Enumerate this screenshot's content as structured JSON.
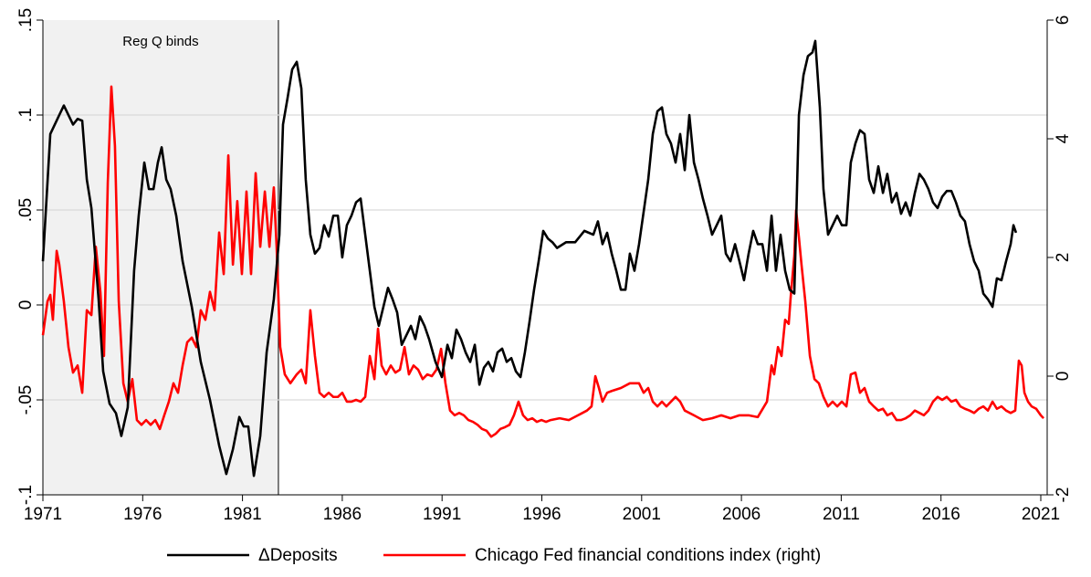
{
  "chart_data": {
    "type": "line",
    "annotation": "Reg Q binds",
    "shaded_region": {
      "x": [
        1971,
        1982.8
      ]
    },
    "xlim": [
      1971,
      2021.32
    ],
    "xticks": [
      1971,
      1976,
      1981,
      1986,
      1991,
      1996,
      2001,
      2006,
      2011,
      2016,
      2021
    ],
    "ylim": [
      -0.1,
      0.15
    ],
    "yticks": [
      {
        "value": -0.1,
        "label": "-.1"
      },
      {
        "value": -0.05,
        "label": "-.05"
      },
      {
        "value": 0,
        "label": "0"
      },
      {
        "value": 0.05,
        "label": ".05"
      },
      {
        "value": 0.1,
        "label": ".1"
      },
      {
        "value": 0.15,
        "label": ".15"
      }
    ],
    "y2lim": [
      -2,
      6
    ],
    "y2ticks": [
      -2,
      0,
      2,
      4,
      6
    ],
    "grid": true,
    "legend": "bottom",
    "series": [
      {
        "name": "ΔDeposits",
        "color": "#000000",
        "x": [
          1971.0,
          1971.37,
          1971.82,
          1972.05,
          1972.51,
          1972.74,
          1972.97,
          1973.2,
          1973.43,
          1973.79,
          1974.02,
          1974.34,
          1974.66,
          1974.93,
          1975.25,
          1975.57,
          1975.8,
          1976.08,
          1976.31,
          1976.54,
          1976.76,
          1976.95,
          1977.18,
          1977.4,
          1977.68,
          1978.0,
          1978.46,
          1978.91,
          1979.37,
          1979.83,
          1980.19,
          1980.52,
          1980.84,
          1981.06,
          1981.29,
          1981.57,
          1981.89,
          1982.21,
          1982.57,
          1982.85,
          1983.03,
          1983.26,
          1983.49,
          1983.72,
          1983.95,
          1984.17,
          1984.4,
          1984.63,
          1984.86,
          1985.09,
          1985.32,
          1985.55,
          1985.78,
          1986.0,
          1986.23,
          1986.46,
          1986.69,
          1986.92,
          1987.15,
          1987.38,
          1987.61,
          1987.83,
          1988.06,
          1988.29,
          1988.52,
          1988.75,
          1988.98,
          1989.21,
          1989.44,
          1989.66,
          1989.89,
          1990.12,
          1990.35,
          1990.67,
          1990.99,
          1991.27,
          1991.49,
          1991.72,
          1991.95,
          1992.18,
          1992.41,
          1992.64,
          1992.87,
          1993.1,
          1993.32,
          1993.55,
          1993.78,
          1994.01,
          1994.24,
          1994.47,
          1994.7,
          1994.93,
          1995.15,
          1995.38,
          1995.61,
          1995.84,
          1996.07,
          1996.3,
          1996.53,
          1996.76,
          1997.21,
          1997.67,
          1998.13,
          1998.58,
          1998.81,
          1999.04,
          1999.27,
          1999.5,
          1999.73,
          1999.96,
          2000.19,
          2000.41,
          2000.64,
          2000.87,
          2001.1,
          2001.33,
          2001.56,
          2001.79,
          2002.02,
          2002.24,
          2002.47,
          2002.7,
          2002.93,
          2003.16,
          2003.39,
          2003.62,
          2003.85,
          2004.07,
          2004.3,
          2004.53,
          2004.76,
          2004.99,
          2005.22,
          2005.45,
          2005.68,
          2005.9,
          2006.13,
          2006.36,
          2006.59,
          2006.82,
          2007.05,
          2007.28,
          2007.51,
          2007.73,
          2007.96,
          2008.19,
          2008.42,
          2008.65,
          2008.88,
          2009.11,
          2009.33,
          2009.56,
          2009.7,
          2009.93,
          2010.11,
          2010.34,
          2010.57,
          2010.8,
          2011.03,
          2011.26,
          2011.48,
          2011.71,
          2011.94,
          2012.17,
          2012.4,
          2012.63,
          2012.86,
          2013.09,
          2013.31,
          2013.54,
          2013.77,
          2014.0,
          2014.23,
          2014.46,
          2014.69,
          2014.92,
          2015.14,
          2015.37,
          2015.6,
          2015.83,
          2016.06,
          2016.29,
          2016.52,
          2016.75,
          2016.97,
          2017.2,
          2017.43,
          2017.66,
          2017.89,
          2018.12,
          2018.35,
          2018.58,
          2018.8,
          2019.03,
          2019.26,
          2019.49,
          2019.63,
          2019.76
        ],
        "values": [
          0.023,
          0.09,
          0.1,
          0.105,
          0.095,
          0.098,
          0.097,
          0.066,
          0.051,
          0.003,
          -0.035,
          -0.052,
          -0.057,
          -0.069,
          -0.054,
          0.018,
          0.047,
          0.075,
          0.061,
          0.061,
          0.075,
          0.083,
          0.066,
          0.061,
          0.047,
          0.023,
          -0.001,
          -0.03,
          -0.05,
          -0.074,
          -0.089,
          -0.076,
          -0.059,
          -0.064,
          -0.064,
          -0.09,
          -0.069,
          -0.025,
          0.003,
          0.037,
          0.095,
          0.109,
          0.124,
          0.128,
          0.114,
          0.066,
          0.037,
          0.027,
          0.03,
          0.042,
          0.036,
          0.047,
          0.047,
          0.025,
          0.042,
          0.047,
          0.054,
          0.056,
          0.037,
          0.018,
          -0.001,
          -0.011,
          -0.001,
          0.009,
          0.003,
          -0.004,
          -0.021,
          -0.016,
          -0.011,
          -0.018,
          -0.006,
          -0.011,
          -0.018,
          -0.03,
          -0.038,
          -0.021,
          -0.028,
          -0.013,
          -0.018,
          -0.025,
          -0.03,
          -0.021,
          -0.042,
          -0.033,
          -0.03,
          -0.035,
          -0.025,
          -0.023,
          -0.03,
          -0.028,
          -0.035,
          -0.038,
          -0.025,
          -0.009,
          0.008,
          0.023,
          0.039,
          0.035,
          0.033,
          0.03,
          0.033,
          0.033,
          0.039,
          0.037,
          0.044,
          0.032,
          0.038,
          0.027,
          0.018,
          0.008,
          0.008,
          0.027,
          0.018,
          0.032,
          0.049,
          0.066,
          0.09,
          0.102,
          0.104,
          0.09,
          0.085,
          0.075,
          0.09,
          0.071,
          0.1,
          0.075,
          0.066,
          0.056,
          0.047,
          0.037,
          0.042,
          0.047,
          0.027,
          0.023,
          0.032,
          0.023,
          0.013,
          0.027,
          0.039,
          0.032,
          0.032,
          0.018,
          0.047,
          0.018,
          0.037,
          0.018,
          0.008,
          0.006,
          0.1,
          0.121,
          0.131,
          0.133,
          0.139,
          0.104,
          0.061,
          0.037,
          0.042,
          0.047,
          0.042,
          0.042,
          0.075,
          0.085,
          0.092,
          0.09,
          0.066,
          0.059,
          0.073,
          0.059,
          0.069,
          0.054,
          0.059,
          0.048,
          0.054,
          0.047,
          0.059,
          0.069,
          0.066,
          0.061,
          0.054,
          0.051,
          0.057,
          0.06,
          0.06,
          0.054,
          0.047,
          0.044,
          0.032,
          0.023,
          0.018,
          0.006,
          0.003,
          -0.001,
          0.014,
          0.013,
          0.023,
          0.032,
          0.042,
          0.038
        ]
      },
      {
        "name": "Chicago Fed financial conditions index (right)",
        "color": "#ff0000",
        "axis": "y2",
        "x": [
          1971.0,
          1971.23,
          1971.37,
          1971.5,
          1971.69,
          1971.82,
          1972.05,
          1972.28,
          1972.51,
          1972.74,
          1972.97,
          1973.2,
          1973.43,
          1973.65,
          1973.88,
          1974.06,
          1974.25,
          1974.43,
          1974.61,
          1974.8,
          1975.03,
          1975.25,
          1975.48,
          1975.71,
          1975.94,
          1976.17,
          1976.4,
          1976.63,
          1976.86,
          1977.08,
          1977.31,
          1977.54,
          1977.77,
          1978.0,
          1978.23,
          1978.46,
          1978.69,
          1978.91,
          1979.14,
          1979.37,
          1979.6,
          1979.83,
          1980.06,
          1980.29,
          1980.52,
          1980.74,
          1980.97,
          1981.2,
          1981.43,
          1981.66,
          1981.89,
          1982.12,
          1982.35,
          1982.57,
          1982.71,
          1982.89,
          1983.12,
          1983.4,
          1983.72,
          1983.95,
          1984.17,
          1984.4,
          1984.63,
          1984.86,
          1985.09,
          1985.32,
          1985.55,
          1985.78,
          1986.0,
          1986.23,
          1986.46,
          1986.69,
          1986.92,
          1987.15,
          1987.38,
          1987.61,
          1987.79,
          1987.97,
          1988.2,
          1988.43,
          1988.66,
          1988.89,
          1989.12,
          1989.34,
          1989.57,
          1989.8,
          1990.03,
          1990.26,
          1990.49,
          1990.72,
          1990.95,
          1991.17,
          1991.4,
          1991.63,
          1991.86,
          1992.09,
          1992.32,
          1992.55,
          1992.78,
          1993.0,
          1993.23,
          1993.46,
          1993.69,
          1993.92,
          1994.15,
          1994.38,
          1994.6,
          1994.83,
          1995.06,
          1995.29,
          1995.52,
          1995.75,
          1995.98,
          1996.21,
          1996.44,
          1996.89,
          1997.35,
          1997.81,
          1998.26,
          1998.49,
          1998.68,
          1998.86,
          1999.04,
          1999.27,
          1999.5,
          1999.96,
          2000.41,
          2000.87,
          2001.1,
          2001.33,
          2001.56,
          2001.79,
          2002.02,
          2002.24,
          2002.47,
          2002.7,
          2002.93,
          2003.16,
          2003.62,
          2004.07,
          2004.53,
          2004.99,
          2005.45,
          2005.9,
          2006.36,
          2006.82,
          2007.28,
          2007.51,
          2007.64,
          2007.83,
          2008.01,
          2008.19,
          2008.37,
          2008.47,
          2008.65,
          2008.74,
          2008.88,
          2009.01,
          2009.2,
          2009.43,
          2009.66,
          2009.88,
          2010.11,
          2010.34,
          2010.57,
          2010.8,
          2011.03,
          2011.26,
          2011.48,
          2011.71,
          2011.94,
          2012.17,
          2012.4,
          2012.63,
          2012.86,
          2013.09,
          2013.31,
          2013.54,
          2013.77,
          2014.0,
          2014.23,
          2014.46,
          2014.69,
          2014.92,
          2015.14,
          2015.37,
          2015.6,
          2015.83,
          2016.06,
          2016.29,
          2016.52,
          2016.75,
          2016.97,
          2017.2,
          2017.43,
          2017.66,
          2017.89,
          2018.12,
          2018.35,
          2018.58,
          2018.8,
          2019.03,
          2019.26,
          2019.49,
          2019.72,
          2019.9,
          2020.04,
          2020.18,
          2020.36,
          2020.54,
          2020.77,
          2021.0,
          2021.14
        ],
        "values": [
          0.69,
          1.26,
          1.37,
          0.95,
          2.11,
          1.88,
          1.26,
          0.49,
          0.06,
          0.18,
          -0.28,
          1.11,
          1.03,
          2.18,
          1.42,
          0.34,
          3.26,
          4.88,
          3.88,
          1.26,
          -0.12,
          -0.43,
          -0.05,
          -0.74,
          -0.82,
          -0.74,
          -0.82,
          -0.74,
          -0.89,
          -0.66,
          -0.43,
          -0.12,
          -0.28,
          0.18,
          0.57,
          0.65,
          0.49,
          1.11,
          0.95,
          1.42,
          1.11,
          2.42,
          1.72,
          3.72,
          1.88,
          2.95,
          1.72,
          3.11,
          1.72,
          3.42,
          2.18,
          3.11,
          2.18,
          3.18,
          2.18,
          0.49,
          0.03,
          -0.12,
          0.03,
          0.11,
          -0.12,
          1.11,
          0.34,
          -0.28,
          -0.35,
          -0.28,
          -0.35,
          -0.35,
          -0.28,
          -0.43,
          -0.43,
          -0.4,
          -0.43,
          -0.35,
          0.34,
          -0.05,
          0.8,
          0.18,
          0.03,
          0.18,
          0.06,
          0.11,
          0.49,
          0.03,
          0.18,
          0.11,
          -0.05,
          0.03,
          0,
          0.11,
          0.46,
          -0.12,
          -0.58,
          -0.66,
          -0.62,
          -0.66,
          -0.74,
          -0.77,
          -0.82,
          -0.89,
          -0.92,
          -1.02,
          -0.97,
          -0.89,
          -0.86,
          -0.82,
          -0.66,
          -0.43,
          -0.66,
          -0.74,
          -0.71,
          -0.77,
          -0.74,
          -0.77,
          -0.74,
          -0.71,
          -0.74,
          -0.66,
          -0.58,
          -0.51,
          0,
          -0.2,
          -0.43,
          -0.28,
          -0.25,
          -0.2,
          -0.12,
          -0.12,
          -0.28,
          -0.2,
          -0.43,
          -0.51,
          -0.43,
          -0.51,
          -0.43,
          -0.35,
          -0.43,
          -0.58,
          -0.66,
          -0.74,
          -0.71,
          -0.66,
          -0.71,
          -0.66,
          -0.66,
          -0.69,
          -0.43,
          0.18,
          0.03,
          0.49,
          0.34,
          0.95,
          0.88,
          1.34,
          2.03,
          2.8,
          2.34,
          1.88,
          1.26,
          0.34,
          -0.05,
          -0.12,
          -0.35,
          -0.51,
          -0.43,
          -0.51,
          -0.43,
          -0.51,
          0.03,
          0.06,
          -0.28,
          -0.2,
          -0.43,
          -0.51,
          -0.58,
          -0.55,
          -0.66,
          -0.62,
          -0.74,
          -0.74,
          -0.71,
          -0.66,
          -0.58,
          -0.62,
          -0.66,
          -0.58,
          -0.43,
          -0.35,
          -0.4,
          -0.35,
          -0.43,
          -0.4,
          -0.51,
          -0.55,
          -0.58,
          -0.62,
          -0.55,
          -0.51,
          -0.58,
          -0.43,
          -0.55,
          -0.51,
          -0.58,
          -0.62,
          -0.58,
          0.26,
          0.18,
          -0.28,
          -0.43,
          -0.51,
          -0.55,
          -0.66,
          -0.71
        ]
      }
    ]
  }
}
